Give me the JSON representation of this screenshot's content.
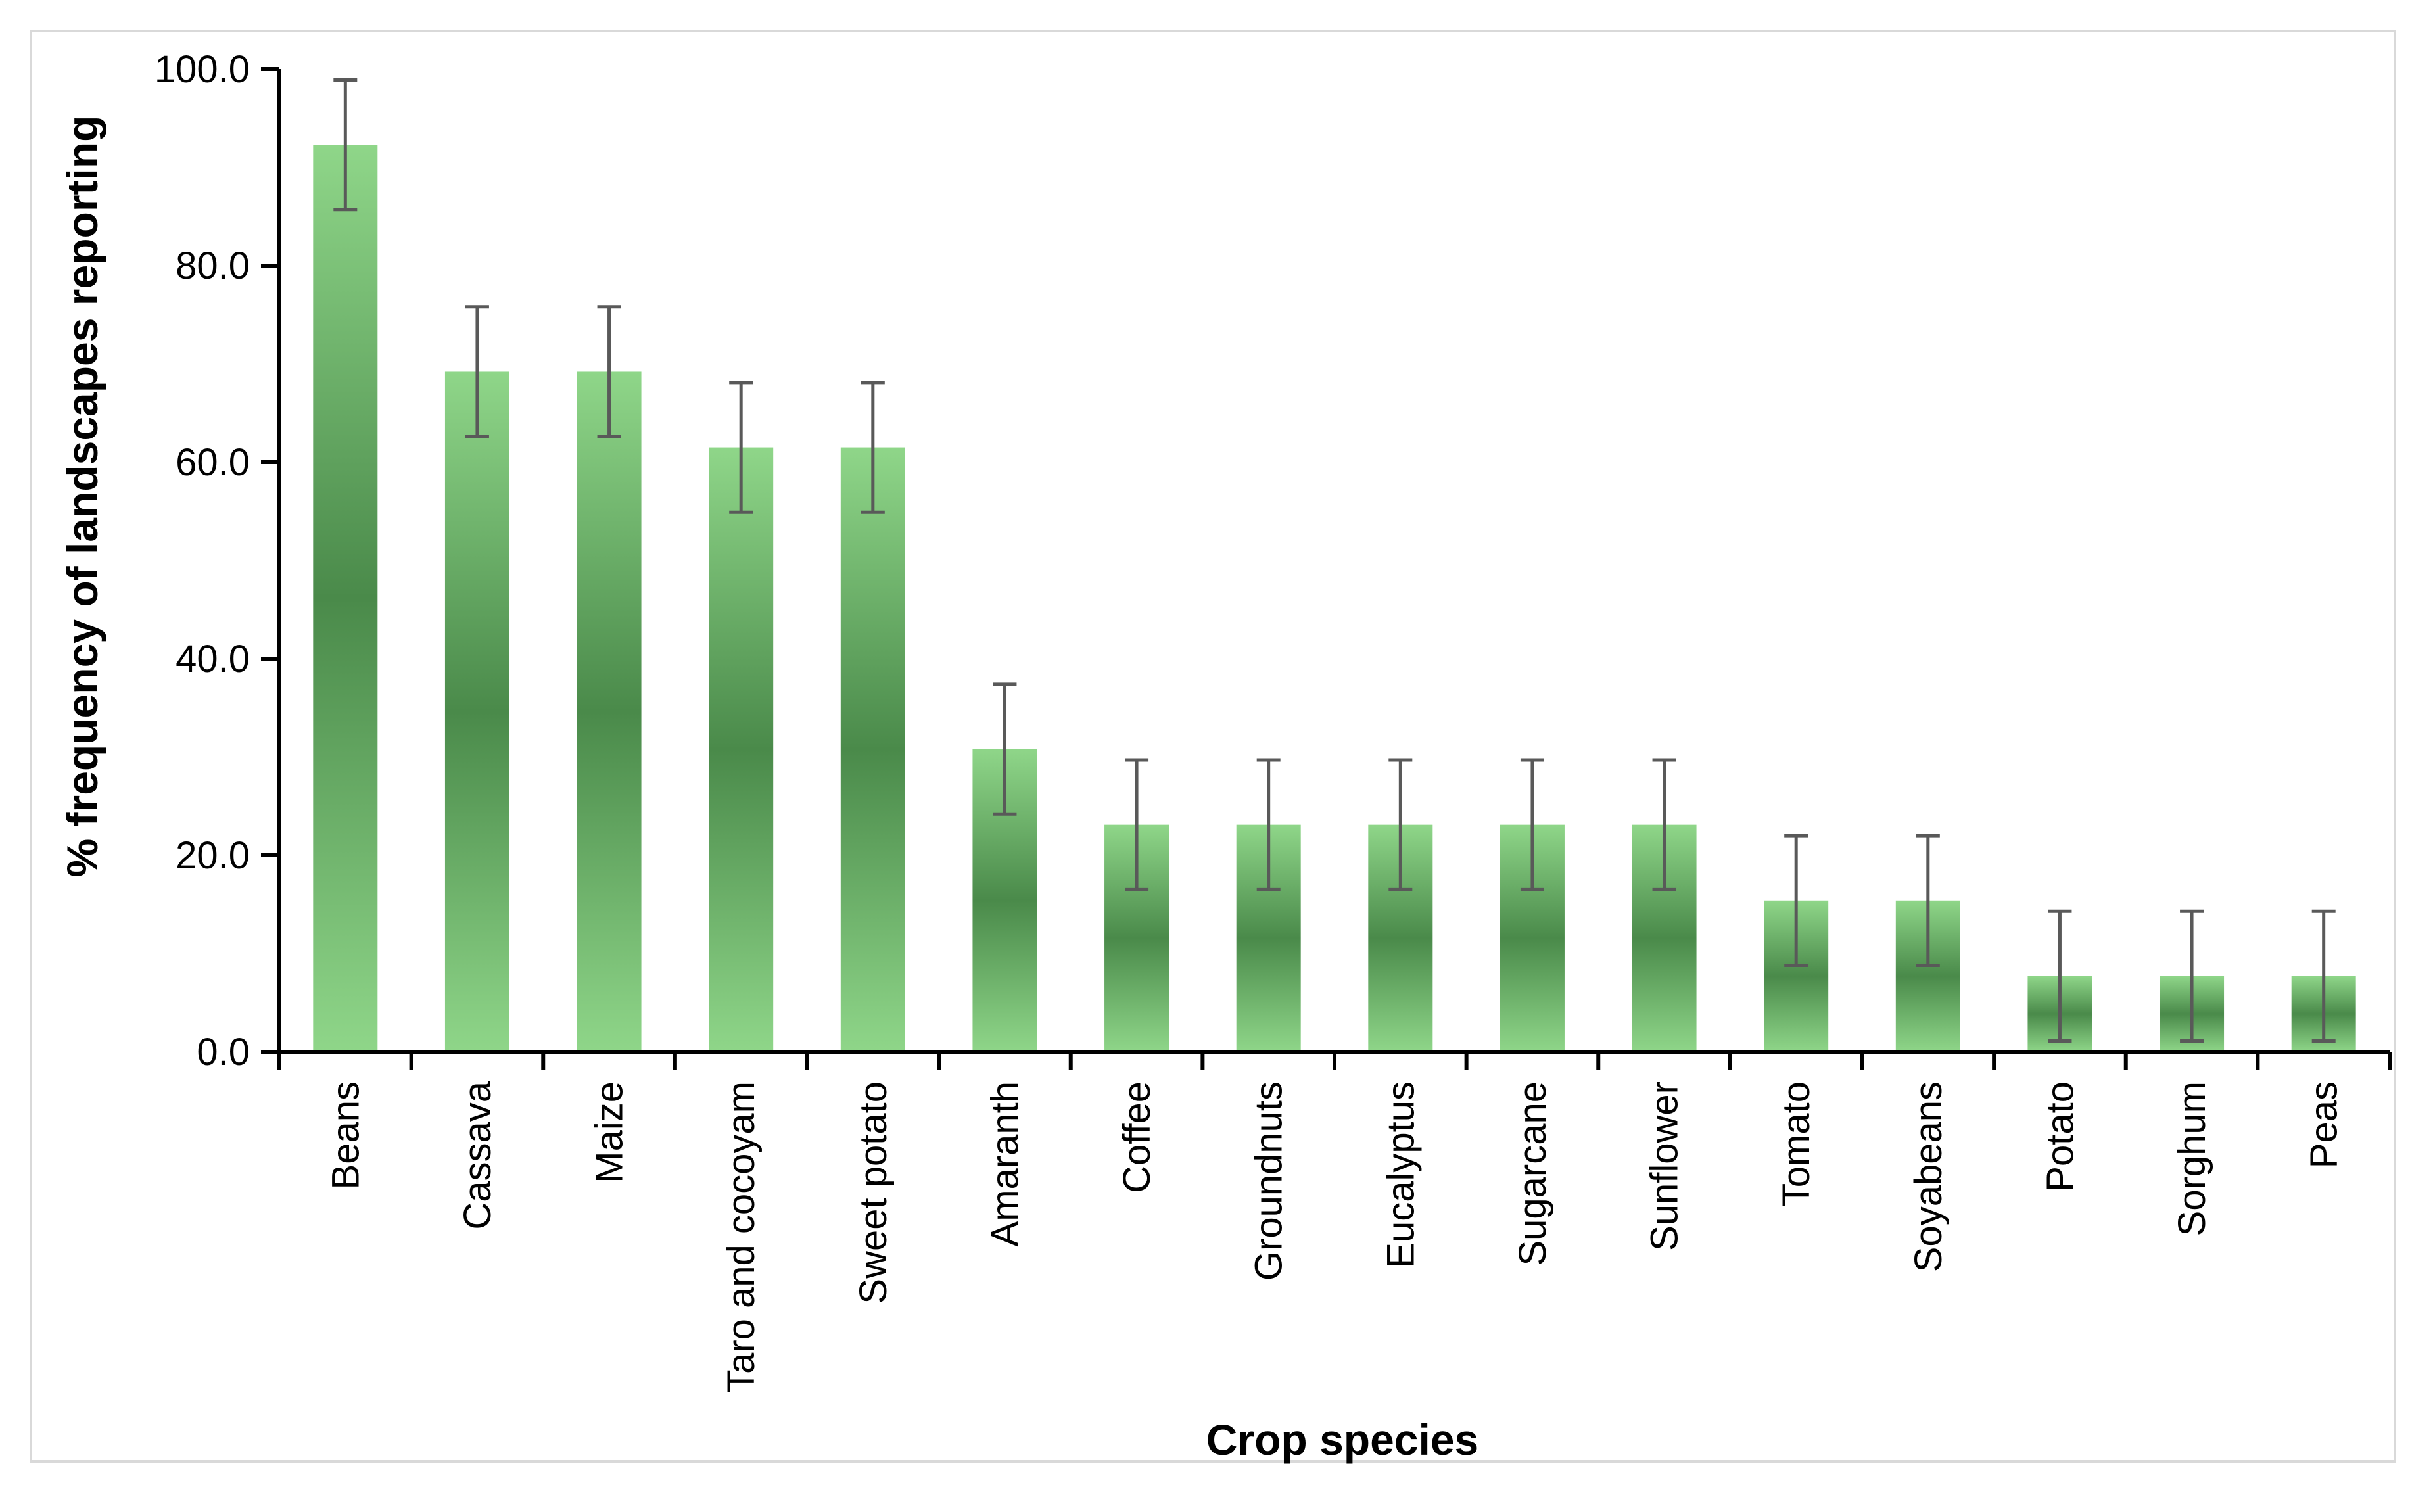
{
  "chart_data": {
    "type": "bar",
    "title": "",
    "xlabel": "Crop species",
    "ylabel": "% frequency of landscapes reporting",
    "ylim": [
      0,
      100
    ],
    "yticks": [
      "0.0",
      "20.0",
      "40.0",
      "60.0",
      "80.0",
      "100.0"
    ],
    "grid": false,
    "categories": [
      "Beans",
      "Cassava",
      "Maize",
      "Taro and cocoyam",
      "Sweet potato",
      "Amaranth",
      "Coffee",
      "Groundnuts",
      "Eucalyptus",
      "Sugarcane",
      "Sunflower",
      "Tomato",
      "Soyabeans",
      "Potato",
      "Sorghum",
      "Peas"
    ],
    "values": [
      92.3,
      69.2,
      69.2,
      61.5,
      61.5,
      30.8,
      23.1,
      23.1,
      23.1,
      23.1,
      23.1,
      15.4,
      15.4,
      7.7,
      7.7,
      7.7
    ],
    "error_low": [
      85.7,
      62.6,
      62.6,
      54.9,
      54.9,
      24.2,
      16.5,
      16.5,
      16.5,
      16.5,
      16.5,
      8.8,
      8.8,
      1.1,
      1.1,
      1.1
    ],
    "error_high": [
      98.9,
      75.8,
      75.8,
      68.1,
      68.1,
      37.4,
      29.7,
      29.7,
      29.7,
      29.7,
      29.7,
      22.0,
      22.0,
      14.3,
      14.3,
      14.3
    ],
    "colors": {
      "bar_edge": "#8fd689",
      "bar_center": "#4a8a4a",
      "error_bar": "#595959",
      "axis": "#000000"
    }
  }
}
